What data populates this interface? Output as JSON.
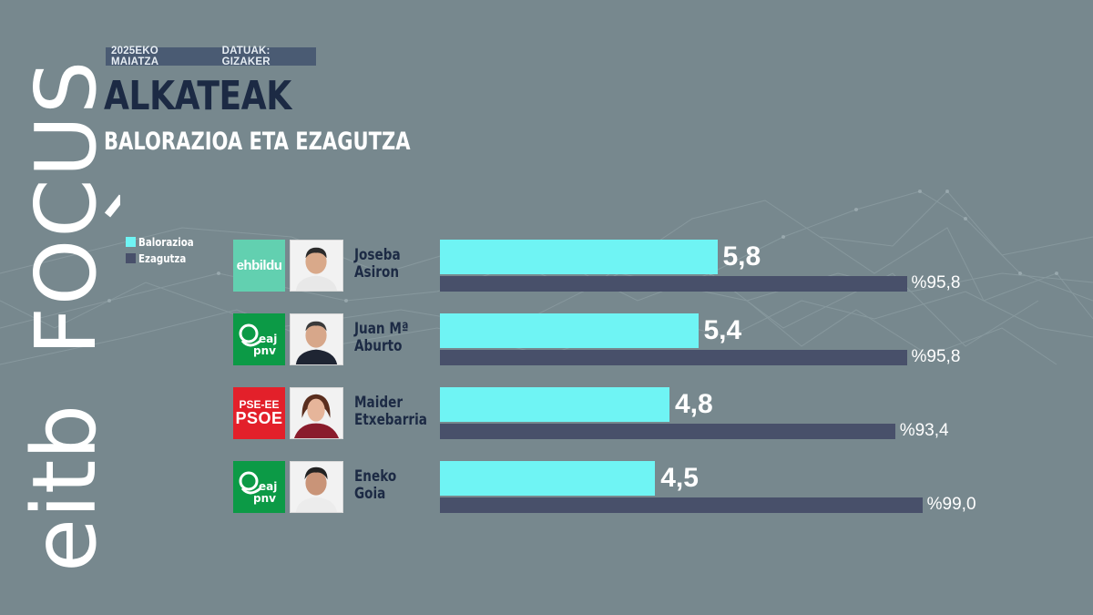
{
  "meta": {
    "date": "2025EKO MAIATZA",
    "source": "DATUAK: GIZAKER"
  },
  "title": "ALKATEAK",
  "subtitle": "BALORAZIOA ETA EZAGUTZA",
  "brand": {
    "text_eitb": "eitb",
    "text_focus": "FOCUS"
  },
  "legend": [
    {
      "label": "Balorazioa",
      "color": "#6ff4f4"
    },
    {
      "label": "Ezagutza",
      "color": "#48506a"
    }
  ],
  "candidates": [
    {
      "name": "Joseba\nAsiron",
      "party_icon": "ehbildu-logo",
      "party_label": "ehbildu"
    },
    {
      "name": "Juan Mª\nAburto",
      "party_icon": "eaj-pnv-logo",
      "party_label": "eaj\npnv"
    },
    {
      "name": "Maider\nEtxebarria",
      "party_icon": "pse-ee-psoe-logo",
      "party_label_top": "PSE-EE",
      "party_label": "PSOE"
    },
    {
      "name": "Eneko\nGoia",
      "party_icon": "eaj-pnv-logo",
      "party_label": "eaj\npnv"
    }
  ],
  "chart_data": {
    "type": "bar",
    "orientation": "horizontal",
    "title": "ALKATEAK",
    "subtitle": "BALORAZIOA ETA EZAGUTZA",
    "categories": [
      "Joseba Asiron",
      "Juan Mª Aburto",
      "Maider Etxebarria",
      "Eneko Goia"
    ],
    "series": [
      {
        "name": "Balorazioa",
        "values": [
          5.8,
          5.4,
          4.8,
          4.5
        ],
        "labels": [
          "5,8",
          "5,4",
          "4,8",
          "4,5"
        ],
        "max": 10
      },
      {
        "name": "Ezagutza",
        "values": [
          95.8,
          95.8,
          93.4,
          99.0
        ],
        "labels": [
          "%95,8",
          "%95,8",
          "%93,4",
          "%99,0"
        ],
        "max": 100
      }
    ],
    "legend_position": "top-left",
    "grid": false
  },
  "colors": {
    "background": "#77888e",
    "rating_bar": "#6ff4f4",
    "knowledge_bar": "#48506a",
    "title": "#1c2a44"
  }
}
